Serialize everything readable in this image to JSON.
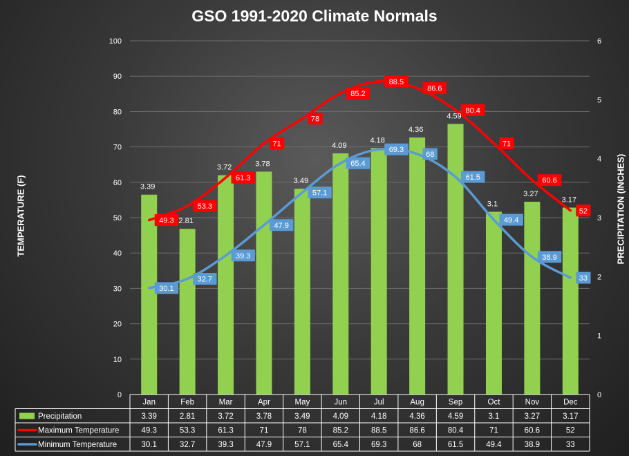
{
  "chart_data": {
    "type": "bar+line",
    "title": "GSO 1991-2020 Climate Normals",
    "ylabel_left": "TEMPERATURE (F)",
    "ylabel_right": "PRECIPITATION (INCHES)",
    "ylim_left": [
      0,
      100
    ],
    "yticks_left": [
      0,
      10,
      20,
      30,
      40,
      50,
      60,
      70,
      80,
      90,
      100
    ],
    "ylim_right": [
      0,
      6
    ],
    "yticks_right": [
      0,
      1,
      2,
      3,
      4,
      5,
      6
    ],
    "categories": [
      "Jan",
      "Feb",
      "Mar",
      "Apr",
      "May",
      "Jun",
      "Jul",
      "Aug",
      "Sep",
      "Oct",
      "Nov",
      "Dec"
    ],
    "series": [
      {
        "name": "Precipitation",
        "kind": "bar",
        "axis": "right",
        "color": "#92d050",
        "values": [
          3.39,
          2.81,
          3.72,
          3.78,
          3.49,
          4.09,
          4.18,
          4.36,
          4.59,
          3.1,
          3.27,
          3.17
        ]
      },
      {
        "name": "Maximum Temperature",
        "kind": "line",
        "axis": "left",
        "color": "#ff0000",
        "values": [
          49.3,
          53.3,
          61.3,
          71,
          78,
          85.2,
          88.5,
          86.6,
          80.4,
          71,
          60.6,
          52
        ]
      },
      {
        "name": "Minimum Temperature",
        "kind": "line",
        "axis": "left",
        "color": "#5b9bd5",
        "values": [
          30.1,
          32.7,
          39.3,
          47.9,
          57.1,
          65.4,
          69.3,
          68,
          61.5,
          49.4,
          38.9,
          33
        ]
      }
    ]
  }
}
